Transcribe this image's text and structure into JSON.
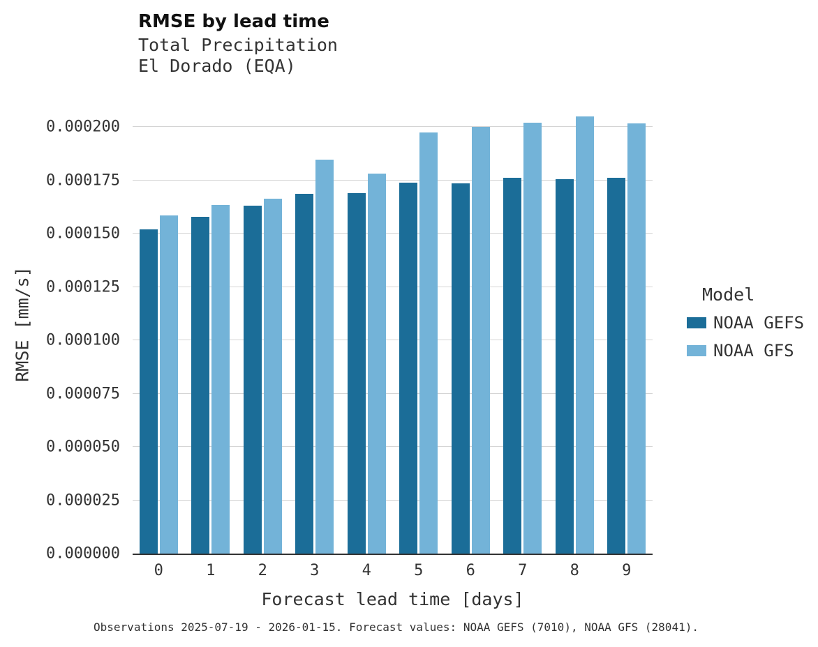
{
  "chart_data": {
    "type": "bar",
    "title": "RMSE by lead time",
    "subtitle1": "Total Precipitation",
    "subtitle2": "El Dorado (EQA)",
    "xlabel": "Forecast lead time [days]",
    "ylabel": "RMSE [mm/s]",
    "legend_title": "Model",
    "legend_position": "right",
    "grid": true,
    "categories": [
      "0",
      "1",
      "2",
      "3",
      "4",
      "5",
      "6",
      "7",
      "8",
      "9"
    ],
    "series": [
      {
        "name": "NOAA GEFS",
        "color": "#1b6d98",
        "values": [
          0.000152,
          0.000158,
          0.000163,
          0.0001685,
          0.000169,
          0.000174,
          0.0001735,
          0.000176,
          0.0001755,
          0.000176
        ]
      },
      {
        "name": "NOAA GFS",
        "color": "#73b3d8",
        "values": [
          0.0001585,
          0.0001635,
          0.0001665,
          0.0001845,
          0.000178,
          0.0001975,
          0.0002,
          0.000202,
          0.000205,
          0.0002015
        ]
      }
    ],
    "ylim": [
      0,
      0.000214
    ],
    "yticks": [
      0,
      2.5e-05,
      5e-05,
      7.5e-05,
      0.0001,
      0.000125,
      0.00015,
      0.000175,
      0.0002
    ],
    "ytick_labels": [
      "0.000000",
      "0.000025",
      "0.000050",
      "0.000075",
      "0.000100",
      "0.000125",
      "0.000150",
      "0.000175",
      "0.000200"
    ],
    "caption": "Observations 2025-07-19 - 2026-01-15. Forecast values: NOAA GEFS (7010), NOAA GFS (28041)."
  }
}
